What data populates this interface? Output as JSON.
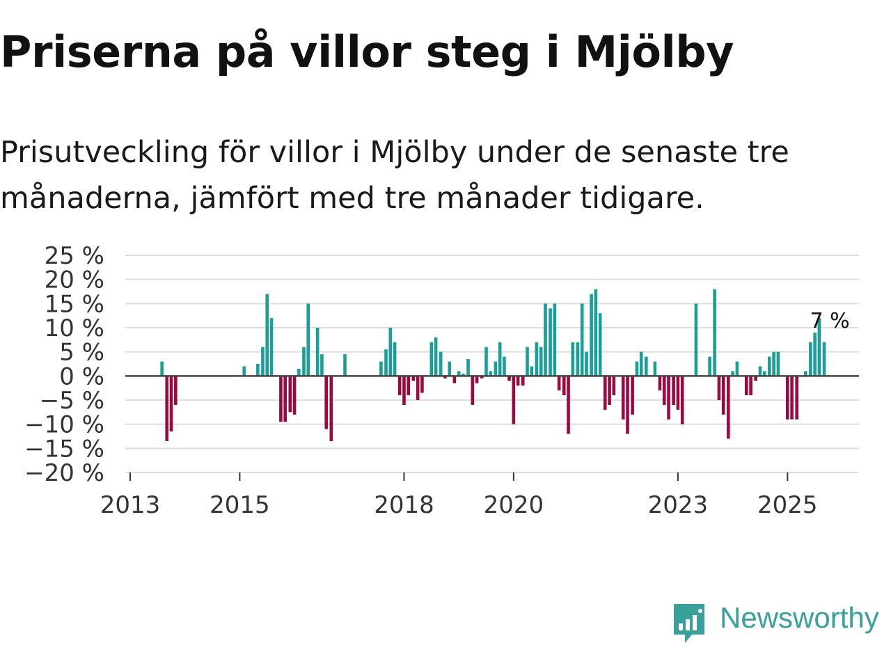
{
  "title": "Priserna på villor steg i Mjölby",
  "subtitle": "Prisutveckling för villor i Mjölby under de senaste tre månaderna, jämfört med tre månader tidigare.",
  "brand": {
    "name": "Newsworthy",
    "color": "#3aa19a"
  },
  "colors": {
    "positive": "#1a9e96",
    "negative": "#9a0a41",
    "grid": "#dddddd",
    "zero": "#444444"
  },
  "chart_data": {
    "type": "bar",
    "ylim": [
      -20,
      25
    ],
    "yticks": [
      25,
      20,
      15,
      10,
      5,
      0,
      -5,
      -10,
      -15,
      -20
    ],
    "ytick_labels": [
      "25 %",
      "20 %",
      "15 %",
      "10 %",
      "5 %",
      "0 %",
      "−5 %",
      "−10 %",
      "−15 %",
      "−20 %"
    ],
    "xticks": [
      2013,
      2015,
      2018,
      2020,
      2023,
      2025
    ],
    "x_range": [
      2013,
      2026.3
    ],
    "grid": true,
    "annotation": {
      "text": "7 %",
      "x": 2025.67
    },
    "points": [
      {
        "x": 2013.58,
        "y": 3
      },
      {
        "x": 2013.67,
        "y": -13.5
      },
      {
        "x": 2013.75,
        "y": -11.5
      },
      {
        "x": 2013.83,
        "y": -6
      },
      {
        "x": 2015.08,
        "y": 2
      },
      {
        "x": 2015.33,
        "y": 2.5
      },
      {
        "x": 2015.42,
        "y": 6
      },
      {
        "x": 2015.5,
        "y": 17
      },
      {
        "x": 2015.58,
        "y": 12
      },
      {
        "x": 2015.75,
        "y": -9.5
      },
      {
        "x": 2015.83,
        "y": -9.5
      },
      {
        "x": 2015.92,
        "y": -7.5
      },
      {
        "x": 2016.0,
        "y": -8
      },
      {
        "x": 2016.08,
        "y": 1.5
      },
      {
        "x": 2016.17,
        "y": 6
      },
      {
        "x": 2016.25,
        "y": 15
      },
      {
        "x": 2016.42,
        "y": 10
      },
      {
        "x": 2016.5,
        "y": 4.5
      },
      {
        "x": 2016.58,
        "y": -11
      },
      {
        "x": 2016.67,
        "y": -13.5
      },
      {
        "x": 2016.92,
        "y": 4.5
      },
      {
        "x": 2017.58,
        "y": 3
      },
      {
        "x": 2017.67,
        "y": 5.5
      },
      {
        "x": 2017.75,
        "y": 10
      },
      {
        "x": 2017.83,
        "y": 7
      },
      {
        "x": 2017.92,
        "y": -4
      },
      {
        "x": 2018.0,
        "y": -6
      },
      {
        "x": 2018.08,
        "y": -4
      },
      {
        "x": 2018.17,
        "y": -1
      },
      {
        "x": 2018.25,
        "y": -5
      },
      {
        "x": 2018.33,
        "y": -3.5
      },
      {
        "x": 2018.5,
        "y": 7
      },
      {
        "x": 2018.58,
        "y": 8
      },
      {
        "x": 2018.67,
        "y": 5
      },
      {
        "x": 2018.75,
        "y": -0.5
      },
      {
        "x": 2018.83,
        "y": 3
      },
      {
        "x": 2018.92,
        "y": -1.5
      },
      {
        "x": 2019.0,
        "y": 1
      },
      {
        "x": 2019.08,
        "y": 0.5
      },
      {
        "x": 2019.17,
        "y": 3.5
      },
      {
        "x": 2019.25,
        "y": -6
      },
      {
        "x": 2019.33,
        "y": -1.5
      },
      {
        "x": 2019.42,
        "y": -0.5
      },
      {
        "x": 2019.5,
        "y": 6
      },
      {
        "x": 2019.58,
        "y": 1
      },
      {
        "x": 2019.67,
        "y": 3
      },
      {
        "x": 2019.75,
        "y": 7
      },
      {
        "x": 2019.83,
        "y": 4
      },
      {
        "x": 2019.92,
        "y": -1
      },
      {
        "x": 2020.0,
        "y": -10
      },
      {
        "x": 2020.08,
        "y": -2
      },
      {
        "x": 2020.17,
        "y": -2
      },
      {
        "x": 2020.25,
        "y": 6
      },
      {
        "x": 2020.33,
        "y": 2
      },
      {
        "x": 2020.42,
        "y": 7
      },
      {
        "x": 2020.5,
        "y": 6
      },
      {
        "x": 2020.58,
        "y": 15
      },
      {
        "x": 2020.67,
        "y": 14
      },
      {
        "x": 2020.75,
        "y": 15
      },
      {
        "x": 2020.83,
        "y": -3
      },
      {
        "x": 2020.92,
        "y": -4
      },
      {
        "x": 2021.0,
        "y": -12
      },
      {
        "x": 2021.08,
        "y": 7
      },
      {
        "x": 2021.17,
        "y": 7
      },
      {
        "x": 2021.25,
        "y": 15
      },
      {
        "x": 2021.33,
        "y": 5
      },
      {
        "x": 2021.42,
        "y": 17
      },
      {
        "x": 2021.5,
        "y": 18
      },
      {
        "x": 2021.58,
        "y": 13
      },
      {
        "x": 2021.67,
        "y": -7
      },
      {
        "x": 2021.75,
        "y": -6
      },
      {
        "x": 2021.83,
        "y": -4
      },
      {
        "x": 2022.0,
        "y": -9
      },
      {
        "x": 2022.08,
        "y": -12
      },
      {
        "x": 2022.17,
        "y": -8
      },
      {
        "x": 2022.25,
        "y": 3
      },
      {
        "x": 2022.33,
        "y": 5
      },
      {
        "x": 2022.42,
        "y": 4
      },
      {
        "x": 2022.58,
        "y": 3
      },
      {
        "x": 2022.67,
        "y": -3
      },
      {
        "x": 2022.75,
        "y": -6
      },
      {
        "x": 2022.83,
        "y": -9
      },
      {
        "x": 2022.92,
        "y": -6
      },
      {
        "x": 2023.0,
        "y": -7
      },
      {
        "x": 2023.08,
        "y": -10
      },
      {
        "x": 2023.33,
        "y": 15
      },
      {
        "x": 2023.58,
        "y": 4
      },
      {
        "x": 2023.67,
        "y": 18
      },
      {
        "x": 2023.75,
        "y": -5
      },
      {
        "x": 2023.83,
        "y": -8
      },
      {
        "x": 2023.92,
        "y": -13
      },
      {
        "x": 2024.0,
        "y": 1
      },
      {
        "x": 2024.08,
        "y": 3
      },
      {
        "x": 2024.25,
        "y": -4
      },
      {
        "x": 2024.33,
        "y": -4
      },
      {
        "x": 2024.42,
        "y": -1
      },
      {
        "x": 2024.5,
        "y": 2
      },
      {
        "x": 2024.58,
        "y": 1
      },
      {
        "x": 2024.67,
        "y": 4
      },
      {
        "x": 2024.75,
        "y": 5
      },
      {
        "x": 2024.83,
        "y": 5
      },
      {
        "x": 2025.0,
        "y": -9
      },
      {
        "x": 2025.08,
        "y": -9
      },
      {
        "x": 2025.17,
        "y": -9
      },
      {
        "x": 2025.33,
        "y": 1
      },
      {
        "x": 2025.42,
        "y": 7
      },
      {
        "x": 2025.5,
        "y": 9
      },
      {
        "x": 2025.58,
        "y": 12
      },
      {
        "x": 2025.67,
        "y": 7
      }
    ]
  }
}
